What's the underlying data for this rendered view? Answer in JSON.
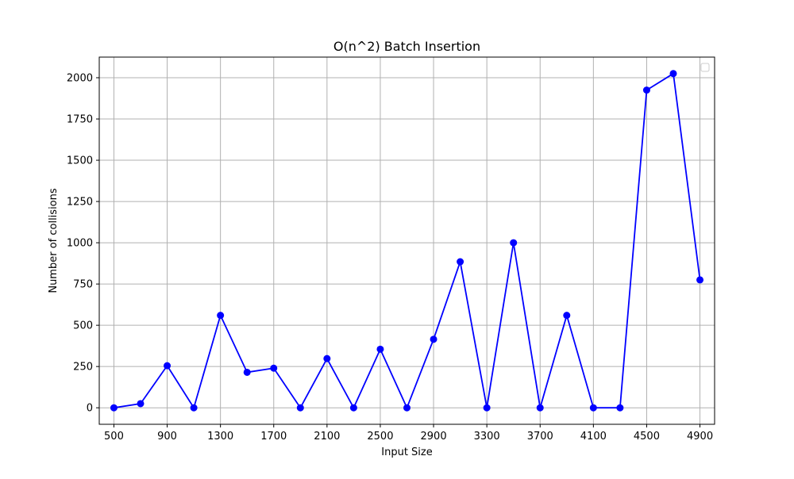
{
  "chart_data": {
    "type": "line",
    "title": "O(n^2) Batch Insertion",
    "xlabel": "Input Size",
    "ylabel": "Number of collisions",
    "xlim": [
      390,
      5010
    ],
    "ylim": [
      -100,
      2125
    ],
    "x_ticks": [
      500,
      900,
      1300,
      1700,
      2100,
      2500,
      2900,
      3300,
      3700,
      4100,
      4500,
      4900
    ],
    "y_ticks": [
      0,
      250,
      500,
      750,
      1000,
      1250,
      1500,
      1750,
      2000
    ],
    "grid": true,
    "legend_position": "upper-right",
    "series": [
      {
        "color": "#0000ff",
        "marker": "circle",
        "x": [
          500,
          700,
          900,
          1100,
          1300,
          1500,
          1700,
          1900,
          2100,
          2300,
          2500,
          2700,
          2900,
          3100,
          3300,
          3500,
          3700,
          3900,
          4100,
          4300,
          4500,
          4700,
          4900
        ],
        "values": [
          0,
          25,
          255,
          0,
          560,
          215,
          240,
          0,
          298,
          0,
          355,
          0,
          415,
          885,
          0,
          1000,
          0,
          560,
          0,
          0,
          1925,
          2025,
          775
        ]
      }
    ]
  }
}
